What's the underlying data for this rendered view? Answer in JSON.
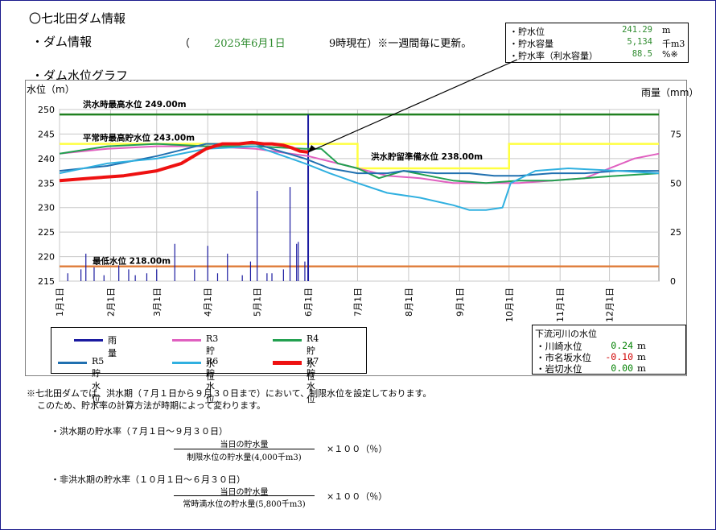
{
  "header": {
    "title": "〇七北田ダム情報",
    "section_info": "・ダム情報",
    "paren_open": "（",
    "date": "2025年6月1日",
    "time_text": "9時現在）※一週間毎に更新。",
    "section_graph": "・ダム水位グラフ"
  },
  "summary": {
    "rows": [
      {
        "label": "・貯水位",
        "value": "241.29",
        "unit": "m"
      },
      {
        "label": "・貯水容量",
        "value": "5,134",
        "unit": "千m3"
      },
      {
        "label": "・貯水率（利水容量）",
        "value": "88.5",
        "unit": "%※"
      }
    ]
  },
  "river": {
    "title": "下流河川の水位",
    "rows": [
      {
        "label": "・川崎水位",
        "value": "0.24",
        "unit": "m",
        "color": "#008000"
      },
      {
        "label": "・市名坂水位",
        "value": "-0.10",
        "unit": "m",
        "color": "#d00000"
      },
      {
        "label": "・岩切水位",
        "value": "0.00",
        "unit": "m",
        "color": "#008000"
      }
    ]
  },
  "legend": [
    {
      "label": "雨　量",
      "color": "#1a1aa0"
    },
    {
      "label": "R3貯水位",
      "color": "#e060c0"
    },
    {
      "label": "R4貯水位",
      "color": "#22a050"
    },
    {
      "label": "R5貯水位",
      "color": "#2070b0"
    },
    {
      "label": "R6貯水位",
      "color": "#30b0e0"
    },
    {
      "label": "R7貯水位",
      "color": "#ee1111"
    }
  ],
  "notes": {
    "line1": "※七北田ダムでは、洪水期（７月１日から９月３０日まで）において、制限水位を設定しております。",
    "line2": "このため、貯水率の計算方法が時期によって変わります。",
    "flood_title": "・洪水期の貯水率（７月１日～９月３０日）",
    "flood_num": "当日の貯水量",
    "flood_den": "制限水位の貯水量(4,000千m3)",
    "flood_mult": "×１００（％）",
    "nonflood_title": "・非洪水期の貯水率（１０月１日～６月３０日）",
    "nonflood_num": "当日の貯水量",
    "nonflood_den": "常時満水位の貯水量(5,800千m3)",
    "nonflood_mult": "×１００（％）"
  },
  "chart_data": {
    "type": "line",
    "ylabel": "水位（m）",
    "y2label": "雨量（mm）",
    "ylim": [
      215,
      250
    ],
    "y2lim": [
      0,
      87.5
    ],
    "yticks": [
      215,
      220,
      225,
      230,
      235,
      240,
      245,
      250
    ],
    "y2ticks": [
      0,
      25,
      50,
      75
    ],
    "xticks": [
      "1月1日",
      "2月1日",
      "3月1日",
      "4月1日",
      "5月1日",
      "6月1日",
      "7月1日",
      "8月1日",
      "9月1日",
      "10月1日",
      "11月1日",
      "12月1日"
    ],
    "x_unit": "day_of_year",
    "current_day": 152,
    "reference_lines": [
      {
        "label": "洪水時最高水位 249.00m",
        "value": 249.0,
        "color": "#208020"
      },
      {
        "label": "平常時最高貯水位 243.00m",
        "value": 243.0,
        "color": "#ffff40"
      },
      {
        "label": "洪水貯留準備水位 238.00m",
        "value": 238.0,
        "color": "#ffff40"
      },
      {
        "label": "最低水位 218.00m",
        "value": 218.0,
        "color": "#e08040"
      }
    ],
    "rain": [
      [
        6,
        4
      ],
      [
        14,
        6
      ],
      [
        17,
        14
      ],
      [
        22,
        7
      ],
      [
        28,
        3
      ],
      [
        37,
        8
      ],
      [
        43,
        6
      ],
      [
        47,
        3
      ],
      [
        54,
        4
      ],
      [
        60,
        6
      ],
      [
        71,
        19
      ],
      [
        83,
        6
      ],
      [
        91,
        18
      ],
      [
        97,
        4
      ],
      [
        103,
        14
      ],
      [
        112,
        3
      ],
      [
        117,
        10
      ],
      [
        121,
        46
      ],
      [
        127,
        4
      ],
      [
        130,
        4
      ],
      [
        137,
        6
      ],
      [
        141,
        48
      ],
      [
        145,
        19
      ],
      [
        146,
        20
      ],
      [
        150,
        10
      ],
      [
        152,
        85
      ]
    ],
    "series": [
      {
        "name": "R3貯水位",
        "color": "#e060c0",
        "points": [
          [
            1,
            241
          ],
          [
            30,
            242
          ],
          [
            60,
            242.5
          ],
          [
            90,
            242.5
          ],
          [
            120,
            242
          ],
          [
            152,
            240.5
          ],
          [
            170,
            239
          ],
          [
            182,
            238
          ],
          [
            200,
            236.5
          ],
          [
            220,
            236
          ],
          [
            240,
            235
          ],
          [
            260,
            235
          ],
          [
            280,
            235
          ],
          [
            300,
            235.5
          ],
          [
            320,
            236
          ],
          [
            335,
            238
          ],
          [
            350,
            240
          ],
          [
            365,
            241
          ]
        ]
      },
      {
        "name": "R4貯水位",
        "color": "#22a050",
        "points": [
          [
            1,
            241
          ],
          [
            30,
            242.5
          ],
          [
            60,
            243
          ],
          [
            90,
            242.5
          ],
          [
            120,
            242.5
          ],
          [
            150,
            242
          ],
          [
            160,
            242
          ],
          [
            170,
            239
          ],
          [
            182,
            238
          ],
          [
            195,
            236
          ],
          [
            210,
            237.5
          ],
          [
            225,
            236.5
          ],
          [
            240,
            235.5
          ],
          [
            260,
            235
          ],
          [
            280,
            235.5
          ],
          [
            300,
            235.5
          ],
          [
            320,
            236
          ],
          [
            340,
            236.5
          ],
          [
            365,
            237
          ]
        ]
      },
      {
        "name": "R5貯水位",
        "color": "#2070b0",
        "points": [
          [
            1,
            237.5
          ],
          [
            30,
            238.5
          ],
          [
            60,
            240.5
          ],
          [
            90,
            243
          ],
          [
            120,
            243
          ],
          [
            150,
            240
          ],
          [
            165,
            238
          ],
          [
            182,
            237
          ],
          [
            200,
            237
          ],
          [
            210,
            237.5
          ],
          [
            230,
            237
          ],
          [
            250,
            237
          ],
          [
            265,
            236.5
          ],
          [
            280,
            236.5
          ],
          [
            300,
            237
          ],
          [
            320,
            237
          ],
          [
            340,
            237.5
          ],
          [
            365,
            237.5
          ]
        ]
      },
      {
        "name": "R6貯水位",
        "color": "#30b0e0",
        "points": [
          [
            1,
            237
          ],
          [
            30,
            239
          ],
          [
            60,
            240
          ],
          [
            90,
            242
          ],
          [
            120,
            242.5
          ],
          [
            150,
            239
          ],
          [
            165,
            237
          ],
          [
            182,
            235
          ],
          [
            200,
            233
          ],
          [
            220,
            232
          ],
          [
            240,
            230.5
          ],
          [
            250,
            229.5
          ],
          [
            260,
            229.5
          ],
          [
            270,
            230
          ],
          [
            275,
            235
          ],
          [
            290,
            237.5
          ],
          [
            310,
            238
          ],
          [
            340,
            237.5
          ],
          [
            365,
            237
          ]
        ]
      },
      {
        "name": "R7貯水位",
        "color": "#ee1111",
        "points": [
          [
            1,
            235.5
          ],
          [
            20,
            236
          ],
          [
            40,
            236.5
          ],
          [
            60,
            237.5
          ],
          [
            75,
            239
          ],
          [
            90,
            242
          ],
          [
            100,
            243
          ],
          [
            110,
            243
          ],
          [
            118,
            243.3
          ],
          [
            125,
            243
          ],
          [
            130,
            243
          ],
          [
            137,
            242.7
          ],
          [
            142,
            242.2
          ],
          [
            147,
            241.5
          ],
          [
            152,
            241.3
          ]
        ]
      }
    ]
  }
}
